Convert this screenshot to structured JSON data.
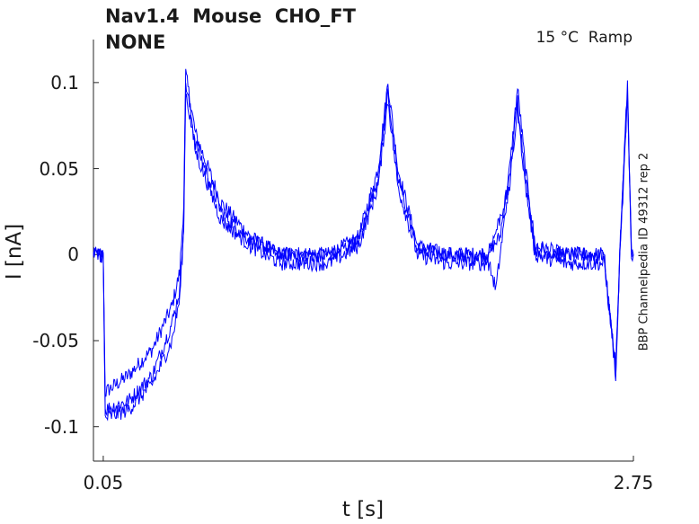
{
  "chart_data": {
    "type": "line",
    "title": "Nav1.4  Mouse  CHO_FT",
    "subtitle": "NONE",
    "condition": "15 °C  Ramp",
    "id_label": "BBP Channelpedia ID 49312 rep 2",
    "xlabel": "t [s]",
    "ylabel": "I [nA]",
    "xlim": [
      0.0,
      2.75
    ],
    "ylim": [
      -0.12,
      0.125
    ],
    "x_ticks": [
      0.05,
      2.75
    ],
    "x_tick_labels": [
      "0.05",
      "2.75"
    ],
    "y_ticks": [
      -0.1,
      -0.05,
      0,
      0.05,
      0.1
    ],
    "y_tick_labels": [
      "-0.1",
      "-0.05",
      "0",
      "0.05",
      "0.1"
    ],
    "grid": false,
    "color": "#0000ff",
    "series": [
      {
        "values": [
          [
            0.0,
            0.0
          ],
          [
            0.05,
            0.0
          ],
          [
            0.06,
            -0.08
          ],
          [
            0.18,
            -0.07
          ],
          [
            0.3,
            -0.055
          ],
          [
            0.4,
            -0.03
          ],
          [
            0.44,
            -0.01
          ],
          [
            0.46,
            0.03
          ],
          [
            0.47,
            0.105
          ],
          [
            0.52,
            0.07
          ],
          [
            0.65,
            0.03
          ],
          [
            0.8,
            0.01
          ],
          [
            0.95,
            0.0
          ],
          [
            1.2,
            0.0
          ],
          [
            1.35,
            0.01
          ],
          [
            1.45,
            0.05
          ],
          [
            1.5,
            0.1
          ],
          [
            1.55,
            0.05
          ],
          [
            1.65,
            0.005
          ],
          [
            1.8,
            0.0
          ],
          [
            2.0,
            0.0
          ],
          [
            2.07,
            0.01
          ],
          [
            2.12,
            0.05
          ],
          [
            2.16,
            0.097
          ],
          [
            2.2,
            0.05
          ],
          [
            2.25,
            0.005
          ],
          [
            2.4,
            0.0
          ],
          [
            2.6,
            0.0
          ],
          [
            2.66,
            -0.07
          ],
          [
            2.68,
            0.0
          ],
          [
            2.72,
            0.1
          ],
          [
            2.74,
            0.0
          ],
          [
            2.75,
            0.0
          ]
        ]
      },
      {
        "values": [
          [
            0.0,
            0.0
          ],
          [
            0.05,
            0.0
          ],
          [
            0.06,
            -0.09
          ],
          [
            0.18,
            -0.085
          ],
          [
            0.3,
            -0.07
          ],
          [
            0.4,
            -0.04
          ],
          [
            0.44,
            -0.02
          ],
          [
            0.46,
            0.02
          ],
          [
            0.47,
            0.1
          ],
          [
            0.52,
            0.065
          ],
          [
            0.65,
            0.025
          ],
          [
            0.8,
            0.008
          ],
          [
            0.95,
            0.0
          ],
          [
            1.2,
            0.0
          ],
          [
            1.35,
            0.008
          ],
          [
            1.45,
            0.045
          ],
          [
            1.5,
            0.095
          ],
          [
            1.55,
            0.045
          ],
          [
            1.65,
            0.003
          ],
          [
            1.8,
            0.0
          ],
          [
            2.0,
            0.0
          ],
          [
            2.05,
            -0.02
          ],
          [
            2.12,
            0.045
          ],
          [
            2.16,
            0.09
          ],
          [
            2.2,
            0.045
          ],
          [
            2.25,
            0.003
          ],
          [
            2.4,
            0.0
          ],
          [
            2.6,
            0.0
          ],
          [
            2.66,
            -0.07
          ],
          [
            2.68,
            0.0
          ],
          [
            2.72,
            0.095
          ],
          [
            2.74,
            0.0
          ],
          [
            2.75,
            0.0
          ]
        ]
      },
      {
        "values": [
          [
            0.0,
            0.0
          ],
          [
            0.05,
            0.0
          ],
          [
            0.06,
            -0.095
          ],
          [
            0.18,
            -0.09
          ],
          [
            0.3,
            -0.075
          ],
          [
            0.4,
            -0.05
          ],
          [
            0.44,
            -0.025
          ],
          [
            0.46,
            0.015
          ],
          [
            0.47,
            0.095
          ],
          [
            0.52,
            0.06
          ],
          [
            0.65,
            0.02
          ],
          [
            0.8,
            0.005
          ],
          [
            0.95,
            -0.005
          ],
          [
            1.2,
            -0.005
          ],
          [
            1.35,
            0.005
          ],
          [
            1.45,
            0.04
          ],
          [
            1.5,
            0.09
          ],
          [
            1.55,
            0.04
          ],
          [
            1.65,
            0.0
          ],
          [
            1.8,
            -0.005
          ],
          [
            2.0,
            -0.005
          ],
          [
            2.12,
            0.04
          ],
          [
            2.16,
            0.085
          ],
          [
            2.2,
            0.04
          ],
          [
            2.25,
            0.0
          ],
          [
            2.4,
            -0.005
          ],
          [
            2.6,
            -0.005
          ],
          [
            2.66,
            -0.065
          ],
          [
            2.68,
            -0.005
          ],
          [
            2.72,
            0.09
          ],
          [
            2.74,
            0.0
          ],
          [
            2.75,
            0.0
          ]
        ]
      }
    ]
  }
}
